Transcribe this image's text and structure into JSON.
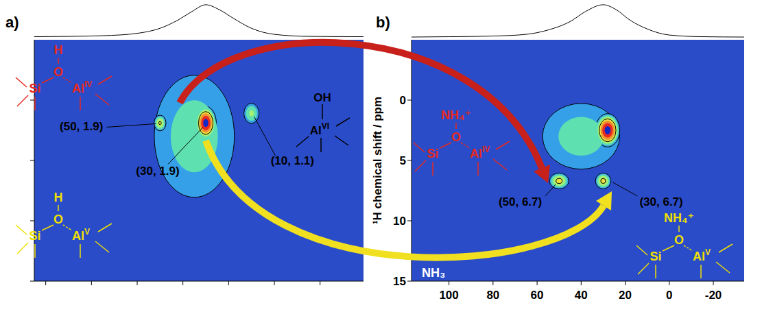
{
  "chart_data": [
    {
      "type": "contour",
      "title": "a)",
      "xlim": [
        105,
        -39
      ],
      "ylim": [
        15,
        -5
      ],
      "xticks": [
        100,
        80,
        60,
        40,
        20,
        0,
        -20
      ],
      "yticks": [
        0,
        5,
        10,
        15
      ],
      "tick_labels": false,
      "peaks": {
        "x": [
          35,
          30,
          50,
          10
        ],
        "y": [
          3,
          1.9,
          1.9,
          1.1
        ],
        "x_width": [
          45,
          10,
          6,
          8
        ],
        "y_width": [
          13,
          3,
          1.5,
          2
        ],
        "intensity": [
          0.38,
          1,
          0.62,
          0.48
        ]
      },
      "peak_labels": [
        {
          "x": 50,
          "y": 1.9,
          "label": "(50, 1.9)"
        },
        {
          "x": 30,
          "y": 1.9,
          "label": "(30, 1.9)"
        },
        {
          "x": 10,
          "y": 1.1,
          "label": "(10, 1.1)"
        }
      ],
      "projection": {
        "x": [
          105,
          90,
          75,
          60,
          50,
          42,
          36,
          30,
          24,
          18,
          10,
          0,
          -15,
          -39
        ],
        "values": [
          0.05,
          0.06,
          0.08,
          0.15,
          0.3,
          0.55,
          0.8,
          1.0,
          0.85,
          0.6,
          0.3,
          0.12,
          0.06,
          0.05
        ],
        "ylim": [
          0,
          1.1
        ]
      },
      "structures": [
        {
          "cation": "H",
          "bridge": "O",
          "left": "Si",
          "right": "Al",
          "right_sup": "IV",
          "color": "#e8281e"
        },
        {
          "cation": "H",
          "bridge": "O",
          "left": "Si",
          "right": "Al",
          "right_sup": "V",
          "color": "#f0e000"
        }
      ],
      "octahedral": {
        "group": "OH",
        "atom": "Al",
        "sup": "VI"
      }
    },
    {
      "type": "contour",
      "title": "b)",
      "y_label": "¹H chemical shift / ppm",
      "xlim": [
        117,
        -34
      ],
      "ylim": [
        15,
        -5
      ],
      "xticks": [
        100,
        80,
        60,
        40,
        20,
        0,
        -20
      ],
      "yticks": [
        0,
        5,
        10,
        15
      ],
      "peaks": {
        "x": [
          40,
          28,
          50,
          30
        ],
        "y": [
          3,
          2.5,
          6.7,
          6.7
        ],
        "x_width": [
          45,
          12,
          10,
          8
        ],
        "y_width": [
          7,
          3,
          1.5,
          1.5
        ],
        "intensity": [
          0.38,
          1,
          0.65,
          0.65
        ]
      },
      "peak_labels": [
        {
          "x": 50,
          "y": 6.7,
          "label": "(50, 6.7)"
        },
        {
          "x": 30,
          "y": 6.7,
          "label": "(30, 6.7)"
        }
      ],
      "projection": {
        "x": [
          117,
          100,
          80,
          65,
          55,
          45,
          38,
          30,
          24,
          18,
          10,
          0,
          -15,
          -34
        ],
        "values": [
          0.04,
          0.05,
          0.07,
          0.12,
          0.25,
          0.5,
          0.8,
          1.0,
          0.85,
          0.55,
          0.28,
          0.1,
          0.05,
          0.04
        ],
        "ylim": [
          0,
          1.1
        ]
      },
      "structures": [
        {
          "cation": "NH₄⁺",
          "bridge": "O",
          "left": "Si",
          "right": "Al",
          "right_sup": "IV",
          "color": "#e8281e"
        },
        {
          "cation": "NH₄⁺",
          "bridge": "O",
          "left": "Si",
          "right": "Al",
          "right_sup": "V",
          "color": "#f0e000"
        }
      ],
      "annotations": [
        "NH₃"
      ]
    }
  ]
}
